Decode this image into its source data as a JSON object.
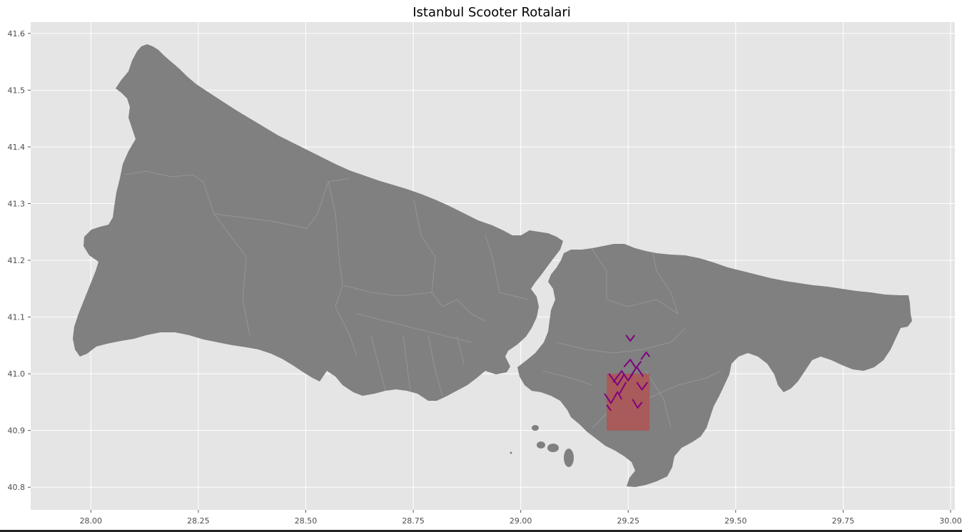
{
  "figure": {
    "title": "Istanbul Scooter Rotalari"
  },
  "chart_data": {
    "type": "map",
    "title": "Istanbul Scooter Rotalari",
    "xlabel": "",
    "ylabel": "",
    "xlim": [
      27.86,
      30.01
    ],
    "ylim": [
      40.76,
      41.62
    ],
    "x_ticks": [
      28.0,
      28.25,
      28.5,
      28.75,
      29.0,
      29.25,
      29.5,
      29.75,
      30.0
    ],
    "x_tick_labels": [
      "28.00",
      "28.25",
      "28.50",
      "28.75",
      "29.00",
      "29.25",
      "29.50",
      "29.75",
      "30.00"
    ],
    "y_ticks": [
      40.8,
      40.9,
      41.0,
      41.1,
      41.2,
      41.3,
      41.4,
      41.5,
      41.6
    ],
    "y_tick_labels": [
      "40.8",
      "40.9",
      "41.0",
      "41.1",
      "41.2",
      "41.3",
      "41.4",
      "41.5",
      "41.6"
    ],
    "grid": true,
    "colors": {
      "panel_background": "#e5e5e5",
      "land": "#808080",
      "district_borders": "#a0a0a0",
      "highlight_area": "#b05353",
      "routes": "#800080"
    },
    "highlight_area": {
      "lon": [
        29.2,
        29.3
      ],
      "lat": [
        40.9,
        41.0
      ]
    },
    "routes": [
      [
        [
          29.245,
          41.068
        ],
        [
          29.255,
          41.058
        ],
        [
          29.265,
          41.068
        ]
      ],
      [
        [
          29.205,
          41.0
        ],
        [
          29.225,
          40.98
        ],
        [
          29.24,
          40.998
        ]
      ],
      [
        [
          29.195,
          40.965
        ],
        [
          29.21,
          40.948
        ],
        [
          29.225,
          40.968
        ],
        [
          29.235,
          40.955
        ]
      ],
      [
        [
          29.2,
          40.945
        ],
        [
          29.21,
          40.935
        ]
      ],
      [
        [
          29.215,
          40.985
        ],
        [
          29.235,
          41.005
        ],
        [
          29.25,
          40.988
        ],
        [
          29.262,
          41.002
        ]
      ],
      [
        [
          29.24,
          41.012
        ],
        [
          29.255,
          41.025
        ],
        [
          29.268,
          41.01
        ],
        [
          29.28,
          41.022
        ]
      ],
      [
        [
          29.255,
          40.995
        ],
        [
          29.27,
          41.012
        ],
        [
          29.285,
          40.995
        ]
      ],
      [
        [
          29.27,
          40.985
        ],
        [
          29.282,
          40.972
        ],
        [
          29.295,
          40.985
        ]
      ],
      [
        [
          29.28,
          41.025
        ],
        [
          29.292,
          41.038
        ],
        [
          29.3,
          41.03
        ]
      ],
      [
        [
          29.26,
          40.955
        ],
        [
          29.272,
          40.94
        ],
        [
          29.282,
          40.95
        ]
      ],
      [
        [
          29.23,
          40.965
        ],
        [
          29.245,
          40.985
        ]
      ]
    ]
  }
}
